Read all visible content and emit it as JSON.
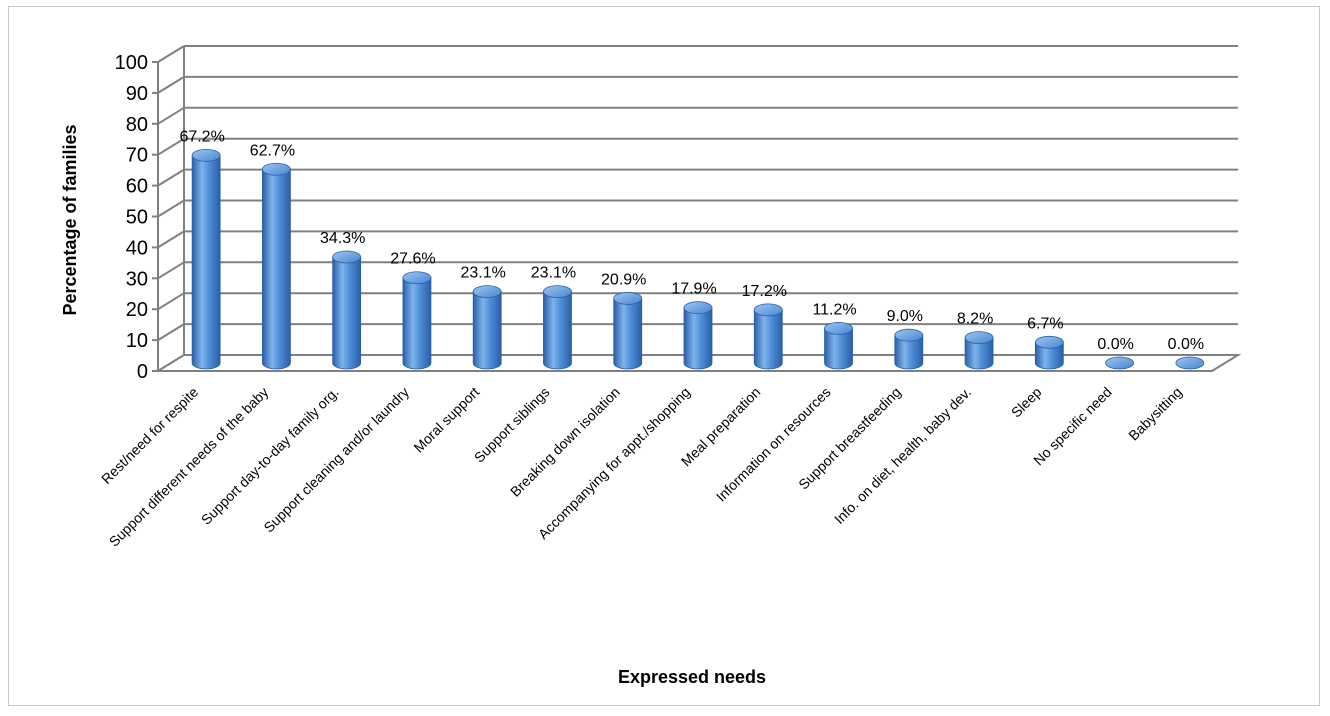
{
  "chart_data": {
    "type": "bar",
    "xlabel": "Expressed needs",
    "ylabel": "Percentage of families",
    "ylim": [
      0,
      100
    ],
    "yticks": [
      0,
      10,
      20,
      30,
      40,
      50,
      60,
      70,
      80,
      90,
      100
    ],
    "grid": true,
    "legend": "none",
    "bar_color": "#3f7fcf",
    "categories": [
      "Rest/need for respite",
      "Support different needs of the baby",
      "Support day-to-day family org.",
      "Support cleaning and/or laundry",
      "Moral support",
      "Support siblings",
      "Breaking down isolation",
      "Accompanying for appt./shopping",
      "Meal preparation",
      "Information on resources",
      "Support breastfeeding",
      "Info. on diet, health, baby dev.",
      "Sleep",
      "No specific need",
      "Babysitting"
    ],
    "values": [
      67.2,
      62.7,
      34.3,
      27.6,
      23.1,
      23.1,
      20.9,
      17.9,
      17.2,
      11.2,
      9.0,
      8.2,
      6.7,
      0.0,
      0.0
    ],
    "data_labels": [
      "67.2%",
      "62.7%",
      "34.3%",
      "27.6%",
      "23.1%",
      "23.1%",
      "20.9%",
      "17.9%",
      "17.2%",
      "11.2%",
      "9.0%",
      "8.2%",
      "6.7%",
      "0.0%",
      "0.0%"
    ]
  }
}
